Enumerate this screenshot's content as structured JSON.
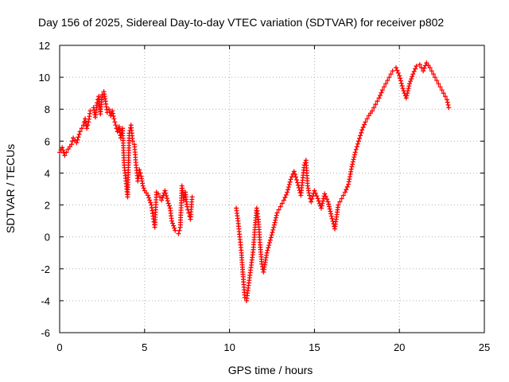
{
  "chart_data": {
    "type": "scatter",
    "title": "Day 156 of 2025, Sidereal Day-to-day VTEC variation (SDTVAR) for receiver p802",
    "xlabel": "GPS time / hours",
    "ylabel": "SDTVAR / TECUs",
    "xlim": [
      0,
      25
    ],
    "ylim": [
      -6,
      12
    ],
    "xticks": [
      0,
      5,
      10,
      15,
      20,
      25
    ],
    "yticks": [
      -6,
      -4,
      -2,
      0,
      2,
      4,
      6,
      8,
      10,
      12
    ],
    "grid": true,
    "marker": "+",
    "series": [
      {
        "name": "p802",
        "color": "#ff0000",
        "x": [
          0.0,
          0.15,
          0.3,
          0.5,
          0.7,
          0.8,
          1.0,
          1.2,
          1.4,
          1.5,
          1.6,
          1.7,
          1.8,
          2.0,
          2.1,
          2.2,
          2.3,
          2.4,
          2.5,
          2.6,
          2.7,
          2.8,
          2.9,
          3.0,
          3.1,
          3.2,
          3.3,
          3.4,
          3.5,
          3.6,
          3.7,
          3.8,
          3.9,
          4.0,
          4.1,
          4.2,
          4.3,
          4.4,
          4.5,
          4.6,
          4.7,
          4.8,
          4.9,
          5.0,
          5.2,
          5.4,
          5.5,
          5.6,
          5.7,
          5.8,
          6.0,
          6.2,
          6.4,
          6.5,
          6.6,
          6.8,
          7.0,
          7.1,
          7.2,
          7.3,
          7.4,
          7.5,
          7.6,
          7.7,
          7.8,
          10.4,
          10.5,
          10.6,
          10.7,
          10.8,
          10.9,
          11.0,
          11.1,
          11.2,
          11.3,
          11.4,
          11.5,
          11.6,
          11.7,
          11.8,
          11.9,
          12.0,
          12.2,
          12.4,
          12.6,
          12.8,
          13.0,
          13.2,
          13.4,
          13.6,
          13.8,
          14.0,
          14.2,
          14.4,
          14.5,
          14.6,
          14.7,
          14.8,
          15.0,
          15.2,
          15.4,
          15.6,
          15.8,
          16.0,
          16.2,
          16.4,
          16.6,
          16.8,
          17.0,
          17.2,
          17.4,
          17.6,
          17.8,
          18.0,
          18.2,
          18.4,
          18.6,
          18.8,
          19.0,
          19.2,
          19.4,
          19.6,
          19.8,
          20.0,
          20.2,
          20.4,
          20.6,
          20.8,
          21.0,
          21.2,
          21.4,
          21.6,
          21.8,
          22.0,
          22.2,
          22.4,
          22.6,
          22.8,
          22.9
        ],
        "y": [
          5.3,
          5.6,
          5.1,
          5.5,
          5.8,
          6.2,
          5.9,
          6.6,
          7.0,
          7.4,
          6.8,
          7.2,
          7.9,
          8.1,
          7.5,
          8.4,
          8.8,
          7.7,
          8.9,
          9.1,
          8.5,
          7.8,
          8.0,
          7.6,
          7.9,
          7.4,
          7.0,
          6.6,
          6.9,
          6.2,
          6.8,
          4.5,
          3.5,
          2.5,
          6.5,
          7.0,
          6.0,
          5.8,
          4.5,
          3.5,
          4.2,
          3.8,
          3.2,
          2.9,
          2.6,
          2.0,
          1.3,
          0.6,
          2.8,
          2.7,
          2.3,
          2.9,
          2.1,
          1.8,
          1.0,
          0.4,
          0.2,
          0.6,
          3.2,
          2.3,
          2.8,
          1.9,
          1.5,
          1.1,
          2.5,
          1.8,
          1.0,
          0.0,
          -1.0,
          -2.5,
          -3.8,
          -4.0,
          -3.2,
          -2.4,
          -1.6,
          -0.8,
          0.6,
          1.8,
          1.1,
          -0.5,
          -1.7,
          -2.2,
          -1.0,
          -0.2,
          0.6,
          1.5,
          1.9,
          2.3,
          2.8,
          3.6,
          4.1,
          3.4,
          2.6,
          4.5,
          4.8,
          3.2,
          2.6,
          2.2,
          2.9,
          2.4,
          1.8,
          2.7,
          2.2,
          1.3,
          0.5,
          2.0,
          2.4,
          2.8,
          3.3,
          4.4,
          5.3,
          6.0,
          6.7,
          7.2,
          7.6,
          7.9,
          8.3,
          8.7,
          9.2,
          9.6,
          10.0,
          10.4,
          10.6,
          10.1,
          9.3,
          8.7,
          9.6,
          10.2,
          10.7,
          10.8,
          10.4,
          10.9,
          10.6,
          10.2,
          9.8,
          9.4,
          9.0,
          8.6,
          8.1
        ]
      }
    ]
  }
}
